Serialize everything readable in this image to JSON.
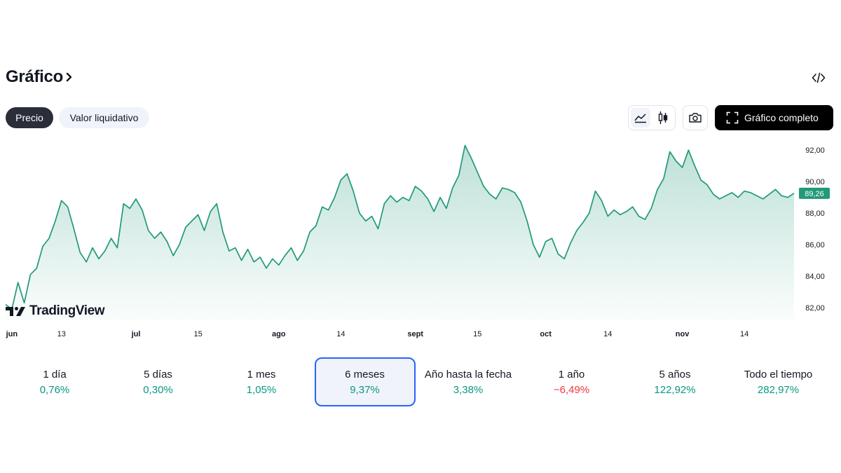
{
  "header": {
    "title": "Gráfico"
  },
  "tabs": {
    "price": "Precio",
    "nav": "Valor liquidativo"
  },
  "toolbar": {
    "full_chart": "Gráfico completo",
    "icons": [
      "line-chart-icon",
      "candlestick-icon",
      "camera-icon",
      "fullscreen-icon",
      "embed-code-icon"
    ]
  },
  "brand": {
    "logo_text": "TradingView"
  },
  "colors": {
    "line": "#22997a",
    "positive": "#089981",
    "negative": "#f23645",
    "selected_border": "#2962ff",
    "price_tag": "#22997a"
  },
  "periods": [
    {
      "label": "1 día",
      "value": "0,76%",
      "trend": "up",
      "selected": false
    },
    {
      "label": "5 días",
      "value": "0,30%",
      "trend": "up",
      "selected": false
    },
    {
      "label": "1 mes",
      "value": "1,05%",
      "trend": "up",
      "selected": false
    },
    {
      "label": "6 meses",
      "value": "9,37%",
      "trend": "up",
      "selected": true
    },
    {
      "label": "Año hasta la fecha",
      "value": "3,38%",
      "trend": "up",
      "selected": false
    },
    {
      "label": "1 año",
      "value": "−6,49%",
      "trend": "down",
      "selected": false
    },
    {
      "label": "5 años",
      "value": "122,92%",
      "trend": "up",
      "selected": false
    },
    {
      "label": "Todo el tiempo",
      "value": "282,97%",
      "trend": "up",
      "selected": false
    }
  ],
  "chart_data": {
    "type": "area",
    "current_price": "89,26",
    "y_ticks": [
      "82,00",
      "84,00",
      "86,00",
      "88,00",
      "90,00",
      "92,00"
    ],
    "ylim": [
      81.2,
      92.5
    ],
    "x_ticks": [
      {
        "label": "jun",
        "bold": true,
        "x": 1
      },
      {
        "label": "13",
        "bold": false,
        "x": 9
      },
      {
        "label": "jul",
        "bold": true,
        "x": 21
      },
      {
        "label": "15",
        "bold": false,
        "x": 31
      },
      {
        "label": "ago",
        "bold": true,
        "x": 44
      },
      {
        "label": "14",
        "bold": false,
        "x": 54
      },
      {
        "label": "sept",
        "bold": true,
        "x": 66
      },
      {
        "label": "15",
        "bold": false,
        "x": 76
      },
      {
        "label": "oct",
        "bold": true,
        "x": 87
      },
      {
        "label": "14",
        "bold": false,
        "x": 97
      },
      {
        "label": "nov",
        "bold": true,
        "x": 109
      },
      {
        "label": "14",
        "bold": false,
        "x": 119
      }
    ],
    "x": [
      0,
      1,
      2,
      3,
      4,
      5,
      6,
      7,
      8,
      9,
      10,
      11,
      12,
      13,
      14,
      15,
      16,
      17,
      18,
      19,
      20,
      21,
      22,
      23,
      24,
      25,
      26,
      27,
      28,
      29,
      30,
      31,
      32,
      33,
      34,
      35,
      36,
      37,
      38,
      39,
      40,
      41,
      42,
      43,
      44,
      45,
      46,
      47,
      48,
      49,
      50,
      51,
      52,
      53,
      54,
      55,
      56,
      57,
      58,
      59,
      60,
      61,
      62,
      63,
      64,
      65,
      66,
      67,
      68,
      69,
      70,
      71,
      72,
      73,
      74,
      75,
      76,
      77,
      78,
      79,
      80,
      81,
      82,
      83,
      84,
      85,
      86,
      87,
      88,
      89,
      90,
      91,
      92,
      93,
      94,
      95,
      96,
      97,
      98,
      99,
      100,
      101,
      102,
      103,
      104,
      105,
      106,
      107,
      108,
      109,
      110,
      111,
      112,
      113,
      114,
      115,
      116,
      117,
      118,
      119,
      120,
      121,
      122,
      123,
      124,
      125,
      126,
      127
    ],
    "values": [
      82.2,
      81.9,
      83.6,
      82.3,
      84.1,
      84.5,
      85.9,
      86.4,
      87.5,
      88.8,
      88.4,
      87.0,
      85.5,
      84.9,
      85.8,
      85.1,
      85.6,
      86.4,
      85.8,
      88.6,
      88.3,
      88.9,
      88.2,
      86.9,
      86.4,
      86.8,
      86.2,
      85.3,
      86.0,
      87.1,
      87.5,
      87.9,
      86.9,
      88.1,
      88.6,
      86.8,
      85.6,
      85.8,
      85.0,
      85.7,
      84.9,
      85.2,
      84.5,
      85.1,
      84.7,
      85.3,
      85.8,
      85.0,
      85.6,
      86.8,
      87.2,
      88.4,
      88.2,
      89.0,
      90.1,
      90.5,
      89.4,
      88.0,
      87.5,
      87.8,
      87.0,
      88.6,
      89.1,
      88.7,
      89.0,
      88.8,
      89.7,
      89.4,
      88.9,
      88.1,
      89.0,
      88.3,
      89.6,
      90.4,
      92.3,
      91.5,
      90.6,
      89.7,
      89.2,
      88.9,
      89.6,
      89.5,
      89.3,
      88.7,
      87.5,
      86.0,
      85.2,
      86.2,
      86.4,
      85.4,
      85.1,
      86.1,
      86.9,
      87.4,
      88.0,
      89.4,
      88.8,
      87.8,
      88.2,
      87.9,
      88.1,
      88.4,
      87.8,
      87.6,
      88.3,
      89.5,
      90.2,
      91.9,
      91.3,
      90.9,
      92.0,
      91.0,
      90.1,
      89.8,
      89.2,
      88.9,
      89.1,
      89.3,
      89.0,
      89.4,
      89.3,
      89.1,
      88.9,
      89.2,
      89.5,
      89.1,
      89.0,
      89.26
    ]
  }
}
